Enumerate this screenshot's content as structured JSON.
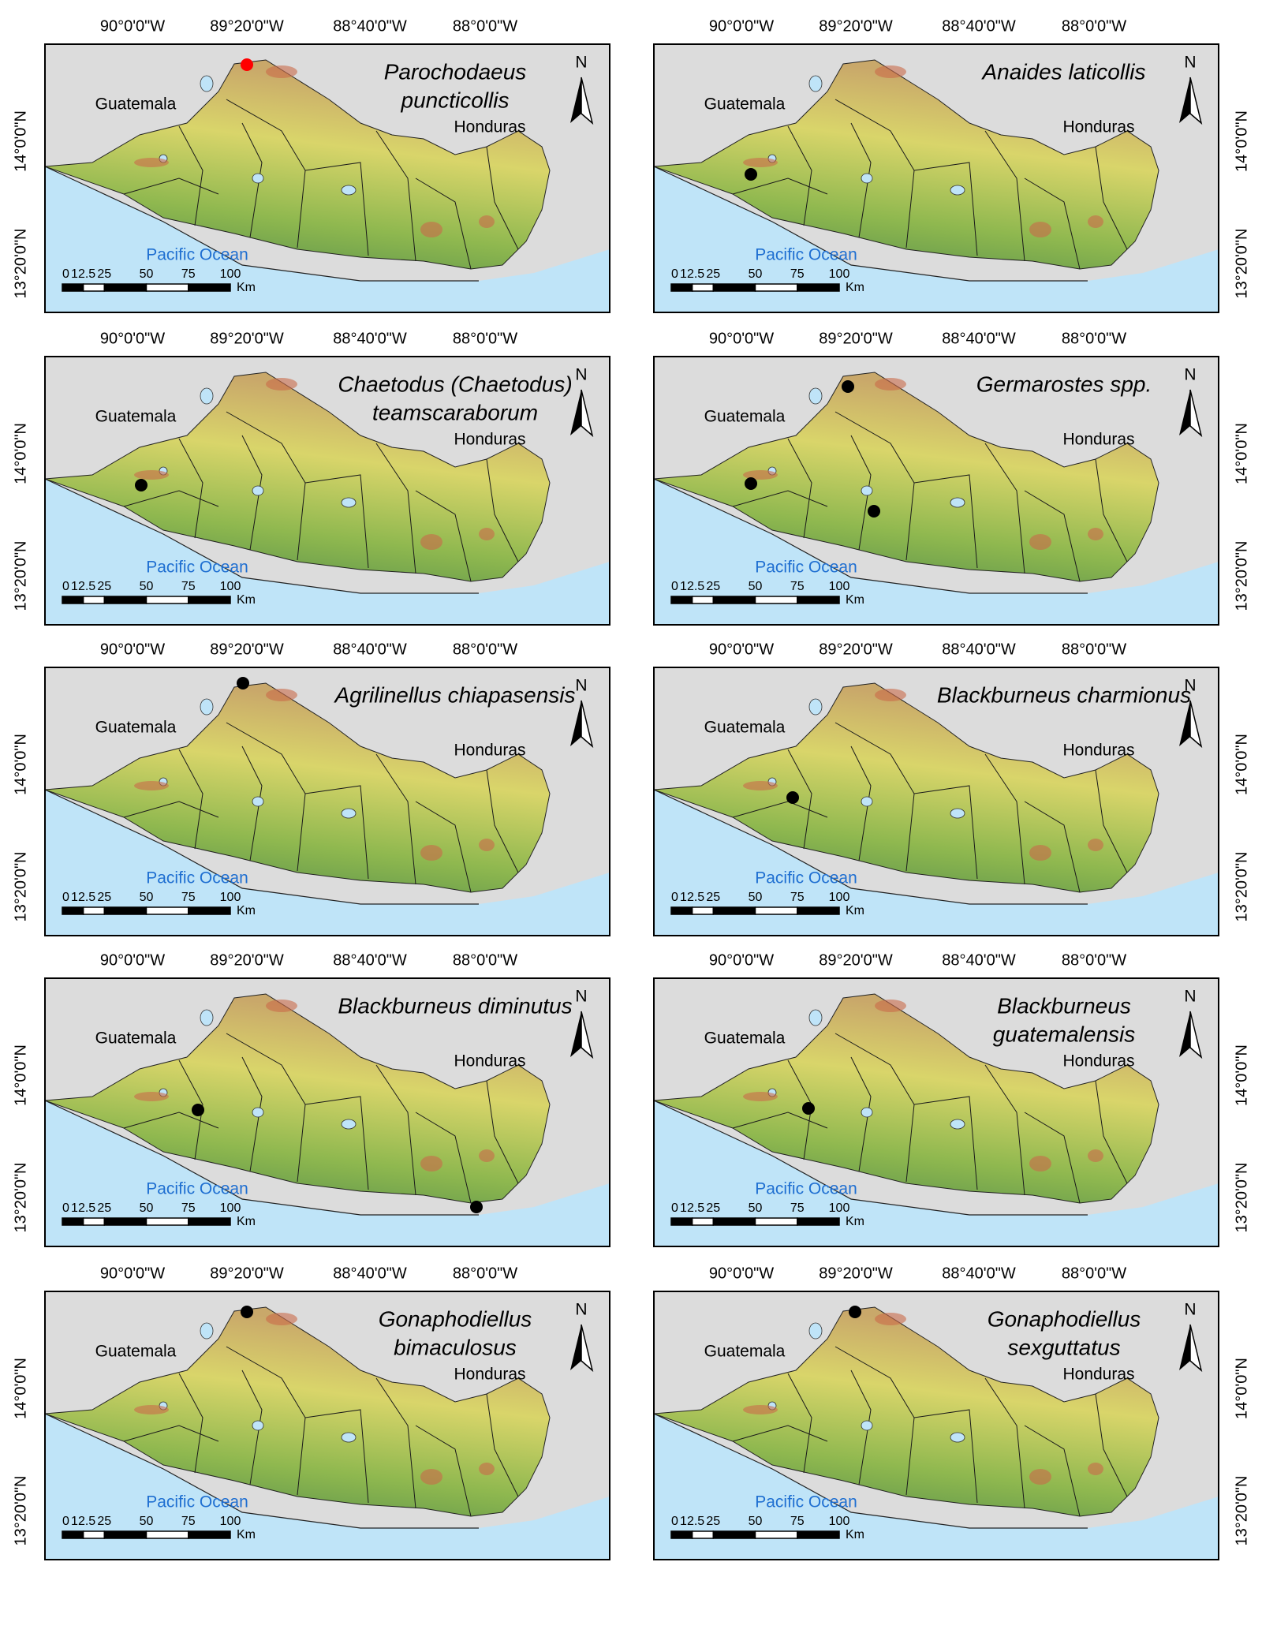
{
  "lon_ticks": [
    "90°0'0\"W",
    "89°20'0\"W",
    "88°40'0\"W",
    "88°0'0\"W"
  ],
  "lat_ticks": [
    "14°0'0\"N",
    "13°20'0\"N"
  ],
  "labels": {
    "guatemala": "Guatemala",
    "honduras": "Honduras",
    "ocean": "Pacific Ocean",
    "north": "N"
  },
  "scale": {
    "ticks": [
      "0",
      "12.5",
      "25",
      "50",
      "75",
      "100"
    ],
    "unit": "Km"
  },
  "panels": [
    {
      "title": [
        "Parochodaeus",
        "puncticollis"
      ]
    },
    {
      "title": [
        "Anaides laticollis"
      ]
    },
    {
      "title": [
        "Chaetodus (Chaetodus)",
        "teamscaraborum"
      ]
    },
    {
      "title": [
        "Germarostes spp."
      ]
    },
    {
      "title": [
        "Agrilinellus chiapasensis"
      ]
    },
    {
      "title": [
        "Blackburneus charmionus"
      ]
    },
    {
      "title": [
        "Blackburneus diminutus"
      ]
    },
    {
      "title": [
        "Blackburneus",
        "guatemalensis"
      ]
    },
    {
      "title": [
        "Gonaphodiellus",
        "bimaculosus"
      ]
    },
    {
      "title": [
        "Gonaphodiellus",
        "sexguttatus"
      ]
    }
  ]
}
